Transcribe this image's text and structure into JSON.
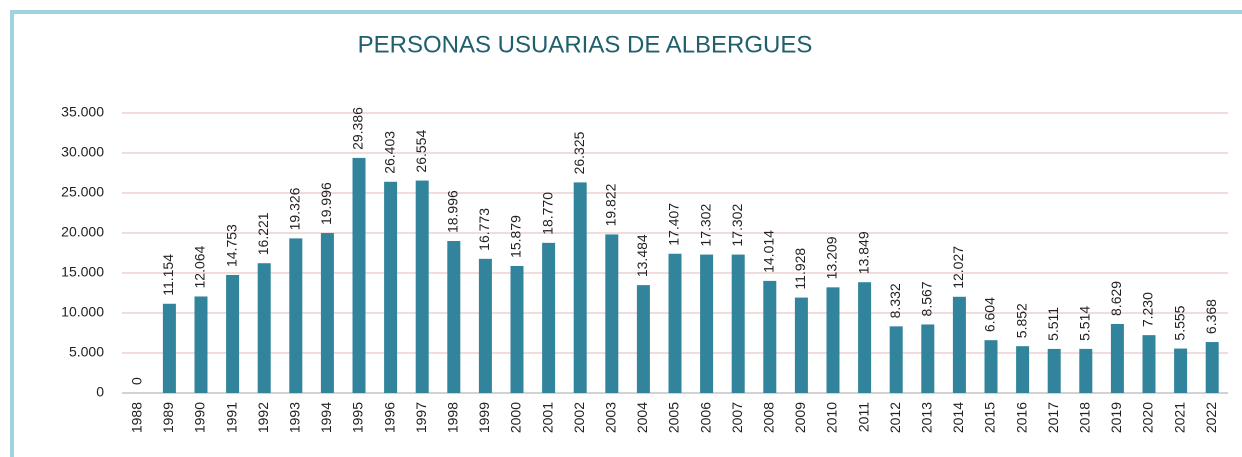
{
  "chart_data": {
    "type": "bar",
    "title": "PERSONAS USUARIAS DE ALBERGUES",
    "categories": [
      "1988",
      "1989",
      "1990",
      "1991",
      "1992",
      "1993",
      "1994",
      "1995",
      "1996",
      "1997",
      "1998",
      "1999",
      "2000",
      "2001",
      "2002",
      "2003",
      "2004",
      "2005",
      "2006",
      "2007",
      "2008",
      "2009",
      "2010",
      "2011",
      "2012",
      "2013",
      "2014",
      "2015",
      "2016",
      "2017",
      "2018",
      "2019",
      "2020",
      "2021",
      "2022"
    ],
    "values": [
      0,
      11154,
      12064,
      14753,
      16221,
      19326,
      19996,
      29386,
      26403,
      26554,
      18996,
      16773,
      15879,
      18770,
      26325,
      19822,
      13484,
      17407,
      17302,
      17302,
      14014,
      11928,
      13209,
      13849,
      8332,
      8567,
      12027,
      6604,
      5852,
      5511,
      5514,
      8629,
      7230,
      5555,
      6368
    ],
    "value_labels": [
      "0",
      "11.154",
      "12.064",
      "14.753",
      "16.221",
      "19.326",
      "19.996",
      "29.386",
      "26.403",
      "26.554",
      "18.996",
      "16.773",
      "15.879",
      "18.770",
      "26.325",
      "19.822",
      "13.484",
      "17.407",
      "17.302",
      "17.302",
      "14.014",
      "11.928",
      "13.209",
      "13.849",
      "8.332",
      "8.567",
      "12.027",
      "6.604",
      "5.852",
      "5.511",
      "5.514",
      "8.629",
      "7.230",
      "5.555",
      "6.368"
    ],
    "color": "#31849b",
    "ylim": [
      0,
      35000
    ],
    "yticks": [
      0,
      {
        "value": 5000,
        "label": "5.000"
      },
      {
        "value": 10000,
        "label": "10.000"
      },
      {
        "value": 15000,
        "label": "15.000"
      },
      {
        "value": 20000,
        "label": "20.000"
      },
      {
        "value": 25000,
        "label": "25.000"
      },
      {
        "value": 30000,
        "label": "30.000"
      },
      {
        "value": 35000,
        "label": "35.000"
      }
    ],
    "grid": true
  }
}
